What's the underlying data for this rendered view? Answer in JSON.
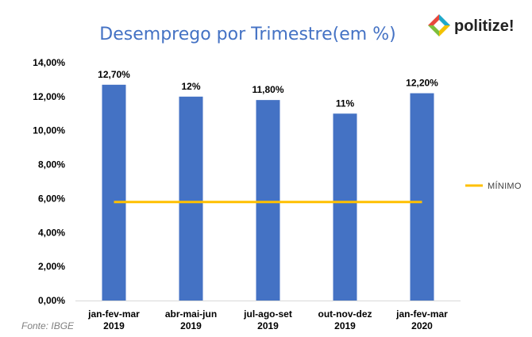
{
  "logo": {
    "text": "politize!",
    "colors": [
      "#1FA8C9",
      "#F2C200",
      "#7DBE3C",
      "#E8473C"
    ]
  },
  "source_note": "Fonte: IBGE",
  "chart_data": {
    "type": "bar",
    "title": "Desemprego por Trimestre(em %)",
    "categories": [
      [
        "jan-fev-mar",
        "2019"
      ],
      [
        "abr-mai-jun",
        "2019"
      ],
      [
        "jul-ago-set",
        "2019"
      ],
      [
        "out-nov-dez",
        "2019"
      ],
      [
        "jan-fev-mar",
        "2020"
      ]
    ],
    "series": [
      {
        "values": [
          12.7,
          12.0,
          11.8,
          11.0,
          12.2
        ],
        "data_labels": [
          "12,70%",
          "12%",
          "11,80%",
          "11%",
          "12,20%"
        ],
        "color": "#4472C4"
      }
    ],
    "reference_line": {
      "name": "MÍNIMO",
      "value": 5.8,
      "color": "#FFC000"
    },
    "ylim": [
      0,
      14
    ],
    "yticks": [
      0,
      2,
      4,
      6,
      8,
      10,
      12,
      14
    ],
    "ytick_labels": [
      "0,00%",
      "2,00%",
      "4,00%",
      "6,00%",
      "8,00%",
      "10,00%",
      "12,00%",
      "14,00%"
    ],
    "xlabel": "",
    "ylabel": "",
    "grid": false,
    "legend_position": "right"
  }
}
